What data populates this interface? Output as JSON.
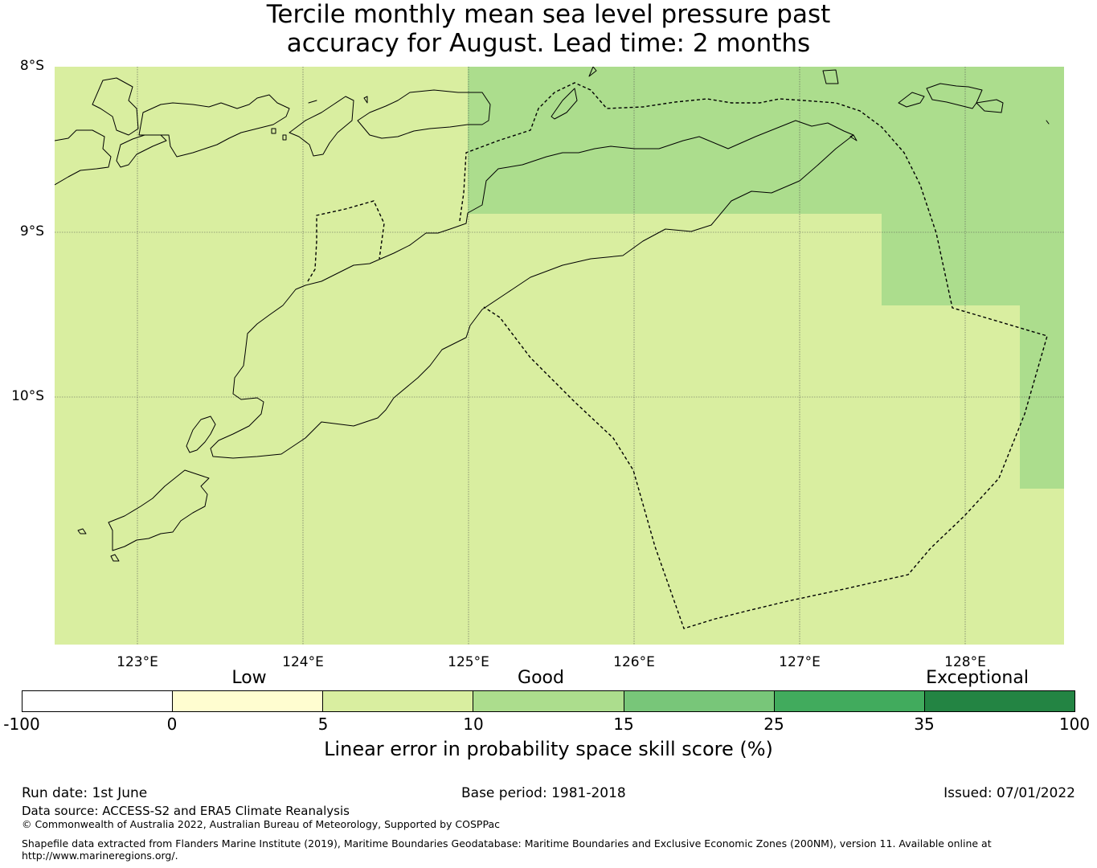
{
  "title": {
    "line1": "Tercile monthly mean sea level pressure past",
    "line2": "accuracy for August. Lead time: 2 months"
  },
  "map": {
    "latitude_labels": [
      "8°S",
      "9°S",
      "10°S"
    ],
    "longitude_labels": [
      "123°E",
      "124°E",
      "125°E",
      "126°E",
      "127°E",
      "128°E"
    ],
    "region_values": {
      "default_category": "5 to 10",
      "northeast_block_category": "10 to 15"
    },
    "colors": {
      "land_outline": "#000000",
      "eez_boundary": "#000000",
      "gridline": "#555555"
    }
  },
  "colorbar": {
    "category_labels": [
      "Low",
      "Good",
      "Exceptional"
    ],
    "tick_labels": [
      "-100",
      "0",
      "5",
      "10",
      "15",
      "25",
      "35",
      "100"
    ],
    "segment_colors": [
      "#ffffff",
      "#fffdd0",
      "#d9eea0",
      "#acdd8d",
      "#78c679",
      "#41ab5d",
      "#238443"
    ],
    "label": "Linear error in probability space skill score (%)"
  },
  "footer": {
    "run_date": "Run date: 1st June",
    "base_period": "Base period: 1981-2018",
    "issued": "Issued: 07/01/2022",
    "data_source": "Data source: ACCESS-S2 and ERA5 Climate Reanalysis",
    "copyright": "© Commonwealth of Australia 2022, Australian Bureau of Meteorology, Supported by COSPPac",
    "shapefile_line1": "Shapefile data extracted from Flanders Marine Institute (2019), Maritime Boundaries Geodatabase: Maritime Boundaries and Exclusive Economic Zones (200NM), version 11. Available online at",
    "shapefile_line2": "http://www.marineregions.org/."
  }
}
